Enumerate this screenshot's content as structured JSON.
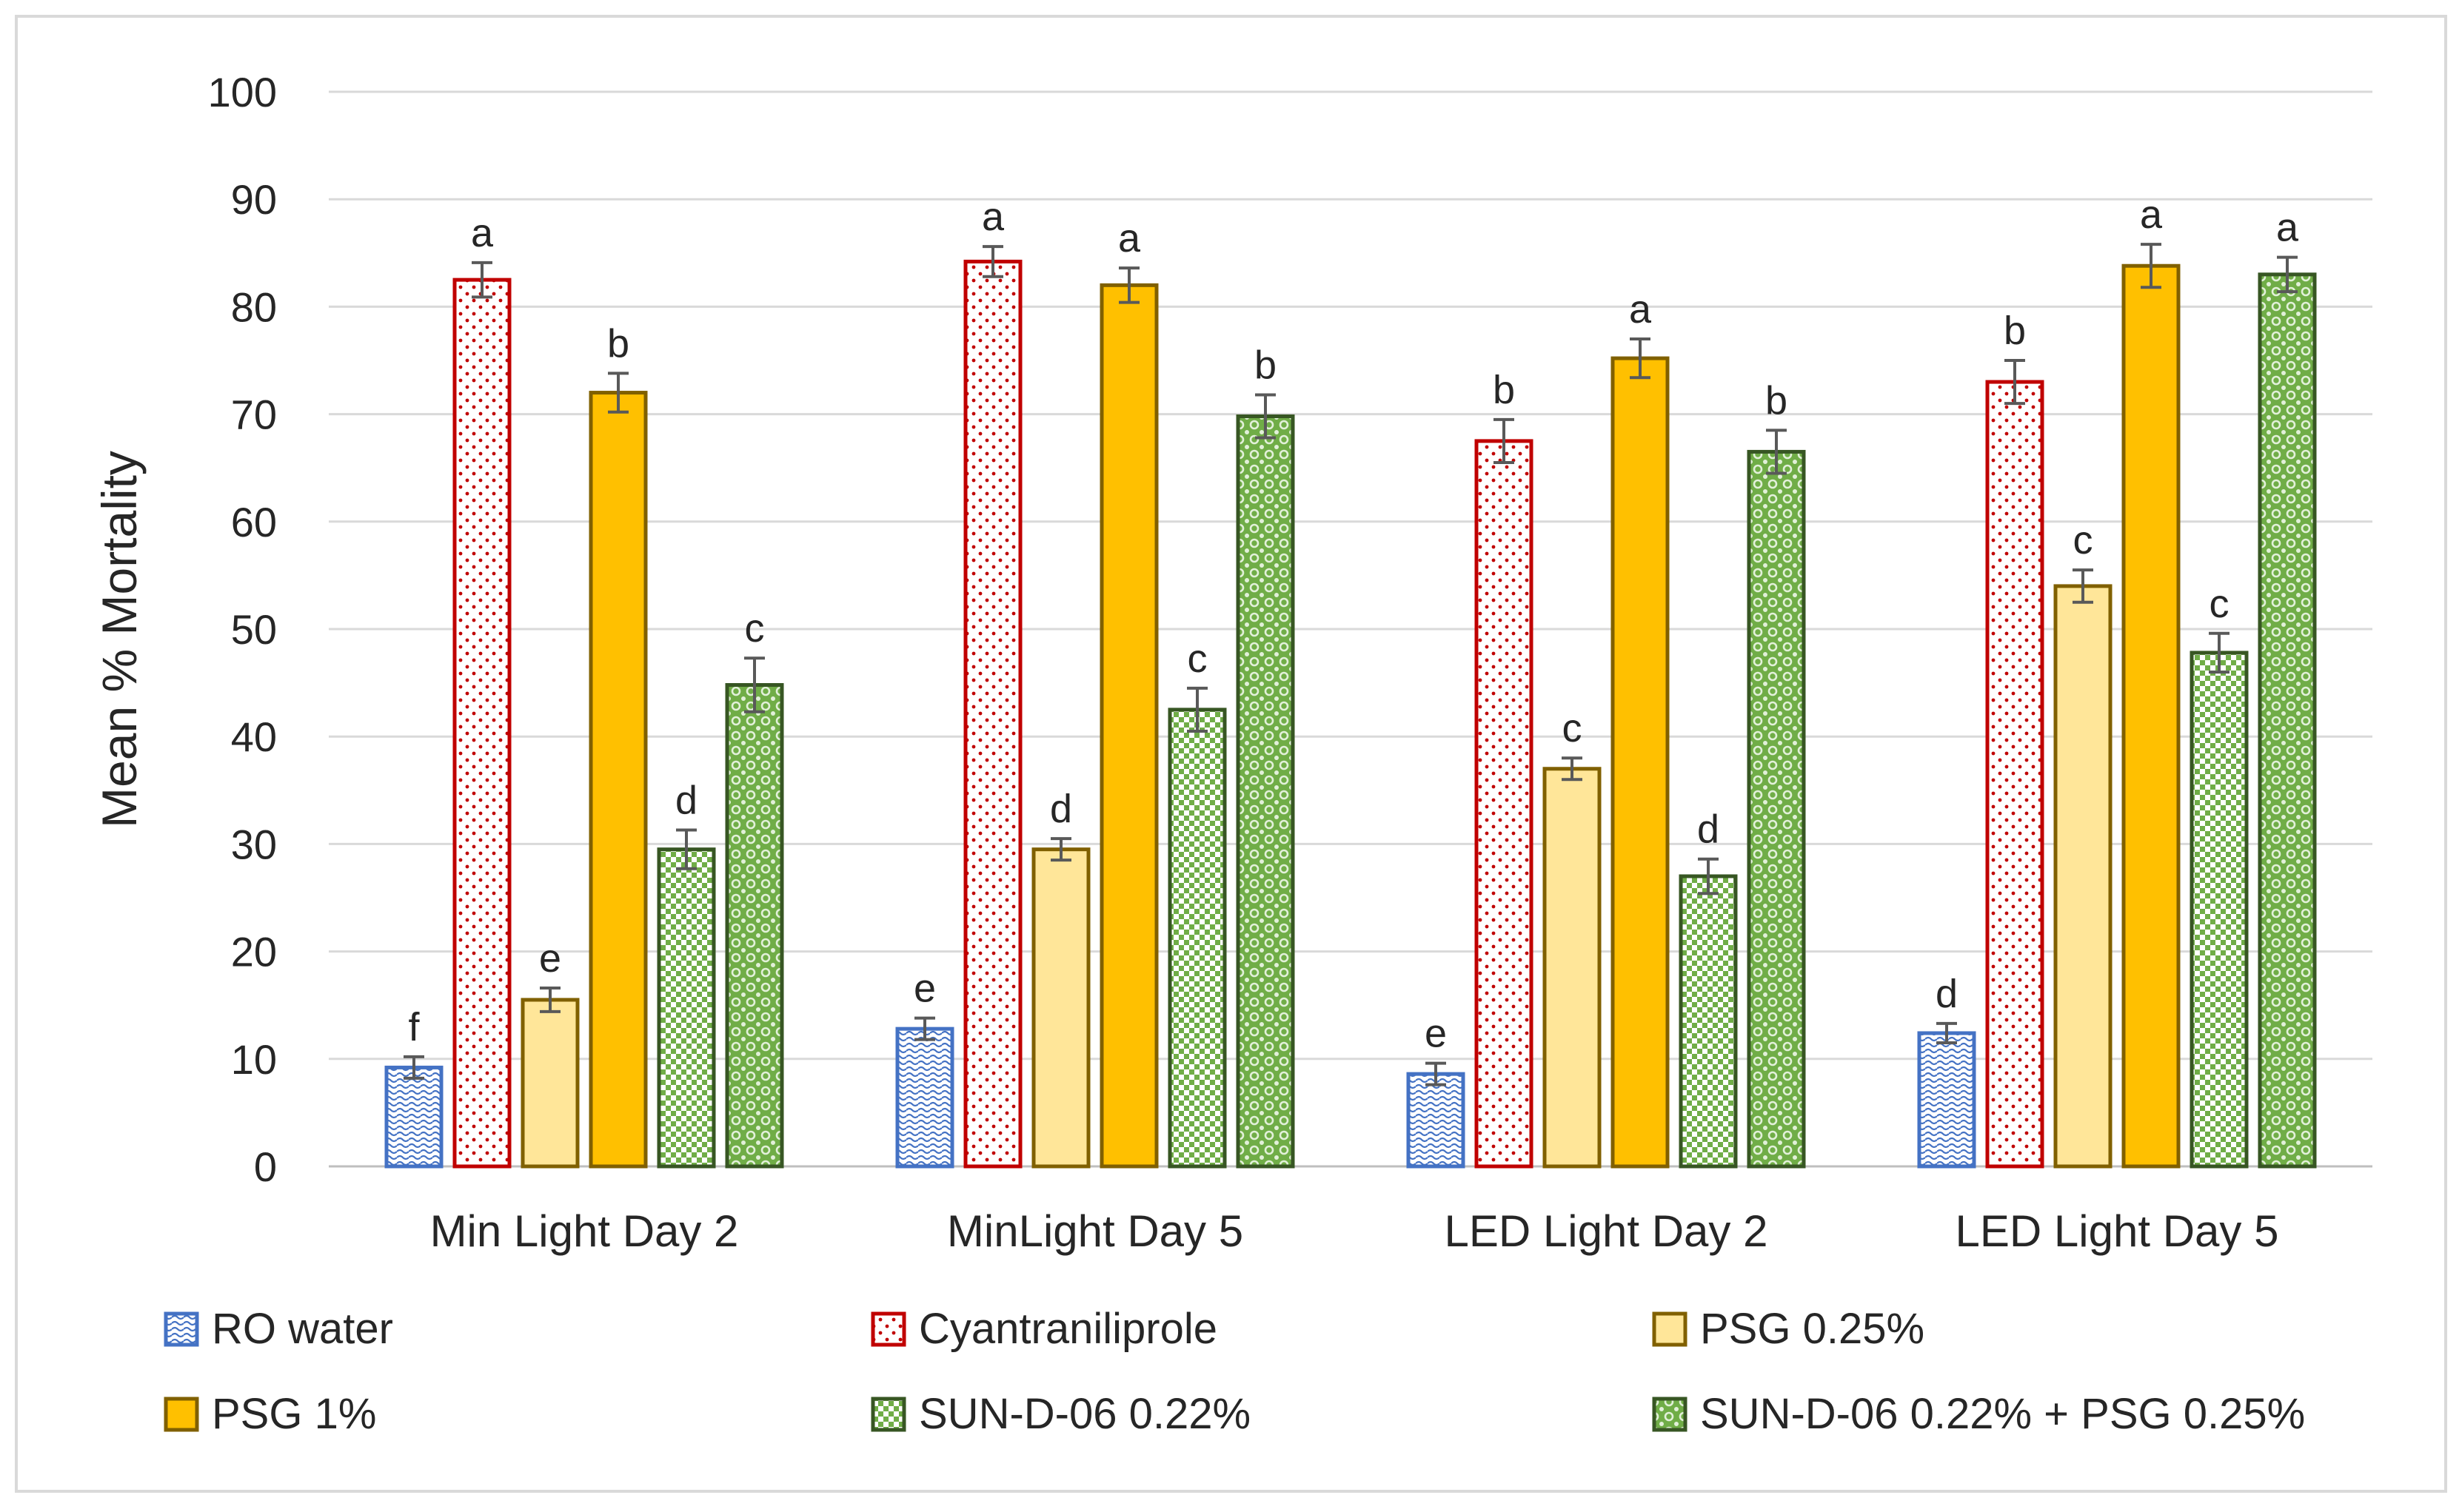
{
  "chart_data": {
    "type": "bar",
    "title": "",
    "xlabel": "",
    "ylabel": "Mean % Mortality",
    "ylim": [
      0,
      100
    ],
    "yticks": [
      "0",
      "10",
      "20",
      "30",
      "40",
      "50",
      "60",
      "70",
      "80",
      "90",
      "100"
    ],
    "categories": [
      "Min Light Day 2",
      "MinLight Day 5",
      "LED Light Day 2",
      "LED Light Day 5"
    ],
    "grid": true,
    "legend_position": "bottom",
    "series": [
      {
        "name": "RO water",
        "pattern": "wave",
        "color": "#4472c4",
        "fill": "#ffffff",
        "values": [
          9.2,
          12.8,
          8.6,
          12.4
        ],
        "errors": [
          1.0,
          1.0,
          1.0,
          0.9
        ],
        "labels": [
          "f",
          "e",
          "e",
          "d"
        ]
      },
      {
        "name": "Cyantraniliprole",
        "pattern": "dots",
        "color": "#c00000",
        "fill": "#ffffff",
        "values": [
          82.5,
          84.2,
          67.5,
          73.0
        ],
        "errors": [
          1.6,
          1.4,
          2.0,
          2.0
        ],
        "labels": [
          "a",
          "a",
          "b",
          "b"
        ]
      },
      {
        "name": "PSG 0.25%",
        "pattern": "solid",
        "color": "#806000",
        "fill": "#ffe699",
        "values": [
          15.5,
          29.5,
          37.0,
          54.0
        ],
        "errors": [
          1.1,
          1.0,
          1.0,
          1.5
        ],
        "labels": [
          "e",
          "d",
          "c",
          "c"
        ]
      },
      {
        "name": "PSG 1%",
        "pattern": "solid",
        "color": "#806000",
        "fill": "#ffc000",
        "values": [
          72.0,
          82.0,
          75.2,
          83.8
        ],
        "errors": [
          1.8,
          1.6,
          1.8,
          2.0
        ],
        "labels": [
          "b",
          "a",
          "a",
          "a"
        ]
      },
      {
        "name": "SUN-D-06 0.22%",
        "pattern": "check",
        "color": "#375623",
        "fill": "#70ad47",
        "values": [
          29.5,
          42.5,
          27.0,
          47.8
        ],
        "errors": [
          1.8,
          2.0,
          1.6,
          1.8
        ],
        "labels": [
          "d",
          "c",
          "d",
          "c"
        ]
      },
      {
        "name": "SUN-D-06 0.22% + PSG 0.25%",
        "pattern": "ring",
        "color": "#375623",
        "fill": "#70ad47",
        "values": [
          44.8,
          69.8,
          66.5,
          83.0
        ],
        "errors": [
          2.5,
          2.0,
          2.0,
          1.6
        ],
        "labels": [
          "c",
          "b",
          "b",
          "a"
        ]
      }
    ]
  },
  "colors": {
    "gridline": "#d9d9d9",
    "axis": "#bfbfbf",
    "error_bar": "#595959",
    "text": "#262626"
  }
}
